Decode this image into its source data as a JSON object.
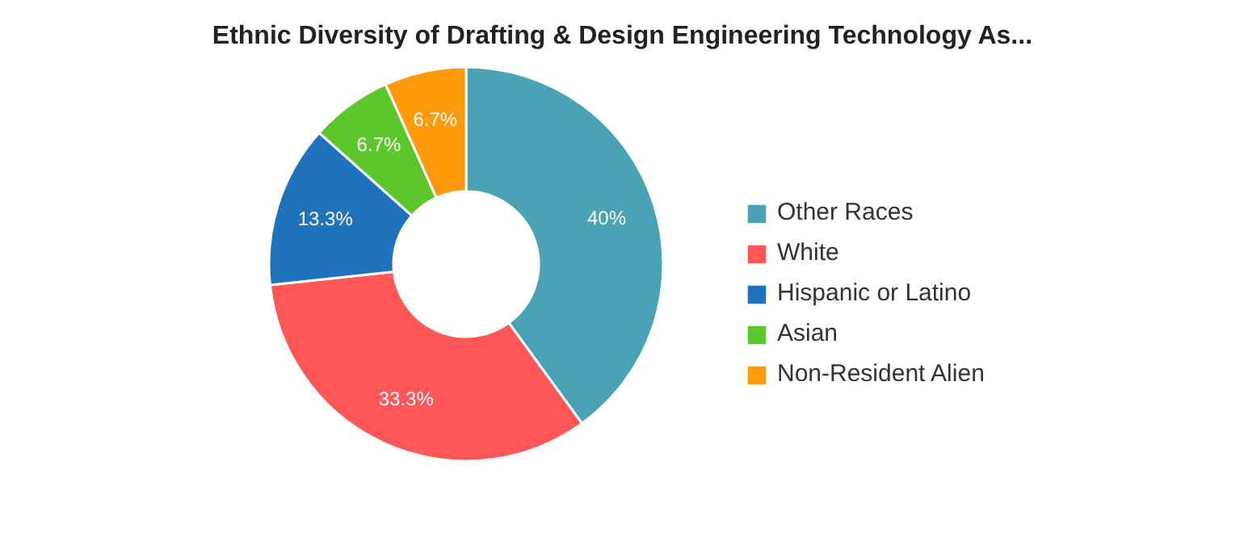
{
  "chart_data": {
    "type": "donut",
    "title": "Ethnic Diversity of Drafting & Design Engineering Technology As...",
    "categories": [
      "Other Races",
      "White",
      "Hispanic or Latino",
      "Asian",
      "Non-Resident Alien"
    ],
    "values": [
      40,
      33.3,
      13.3,
      6.7,
      6.7
    ],
    "value_labels": [
      "40%",
      "33.3%",
      "13.3%",
      "6.7%",
      "6.7%"
    ],
    "colors": [
      "#4aa3b5",
      "#ff5757",
      "#1f73bd",
      "#5cc72b",
      "#ff9a0a"
    ],
    "legend": "right"
  }
}
